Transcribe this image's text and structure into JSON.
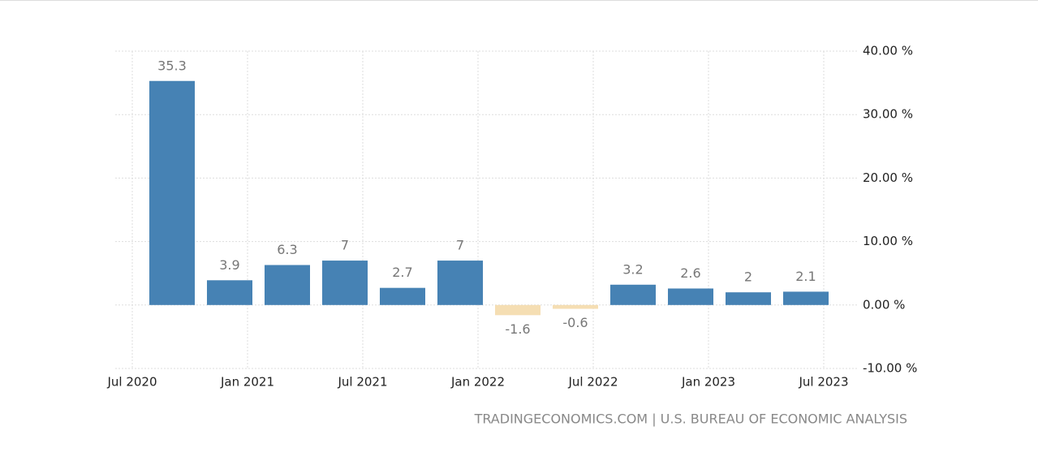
{
  "chart_data": {
    "type": "bar",
    "values": [
      35.3,
      3.9,
      6.3,
      7,
      2.7,
      7,
      -1.6,
      -0.6,
      3.2,
      2.6,
      2,
      2.1
    ],
    "colors": {
      "positive": "#4682b4",
      "negative": "#f5deb3"
    },
    "xticks": [
      "Jul 2020",
      "Jan 2021",
      "Jul 2021",
      "Jan 2022",
      "Jul 2022",
      "Jan 2023",
      "Jul 2023"
    ],
    "ylim": [
      -10,
      40
    ],
    "yticks": [
      {
        "value": 40,
        "label": "40.00 %"
      },
      {
        "value": 30,
        "label": "30.00 %"
      },
      {
        "value": 20,
        "label": "20.00 %"
      },
      {
        "value": 10,
        "label": "10.00 %"
      },
      {
        "value": 0,
        "label": "0.00 %"
      },
      {
        "value": -10,
        "label": "-10.00 %"
      }
    ],
    "grid": true,
    "source": "TRADINGECONOMICS.COM | U.S. BUREAU OF ECONOMIC ANALYSIS"
  }
}
